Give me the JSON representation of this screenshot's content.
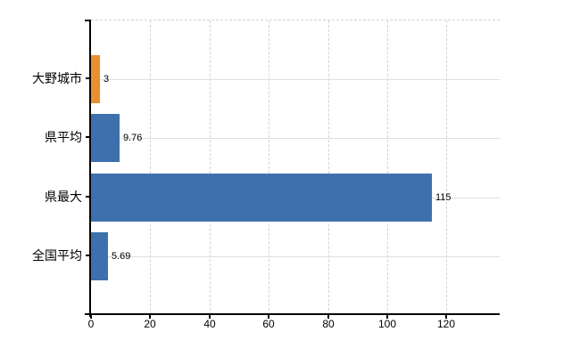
{
  "chart_data": {
    "type": "bar",
    "orientation": "horizontal",
    "title": "",
    "xlabel": "",
    "ylabel": "",
    "categories": [
      "大野城市",
      "県平均",
      "県最大",
      "全国平均"
    ],
    "values": [
      3,
      9.76,
      115,
      5.69
    ],
    "value_labels": [
      "3",
      "9.76",
      "115",
      "5.69"
    ],
    "bar_colors": [
      "#e98f30",
      "#3e70ad",
      "#3e70ad",
      "#3e70ad"
    ],
    "highlight_category": "大野城市",
    "x_ticks": [
      "0",
      "20",
      "40",
      "60",
      "80",
      "100",
      "120"
    ],
    "x_tick_values": [
      0,
      20,
      40,
      60,
      80,
      100,
      120
    ],
    "xlim": [
      0,
      138
    ],
    "grid": true,
    "legend_position": "none"
  },
  "style": {
    "background": "#ffffff",
    "bar_highlight_color": "#e98f30",
    "bar_default_color": "#3e70ad",
    "h_grid_color": "#dbe1d8",
    "v_grid_color": "#d5d1d9",
    "axis_color": "#000000",
    "text_color": "#000000"
  }
}
